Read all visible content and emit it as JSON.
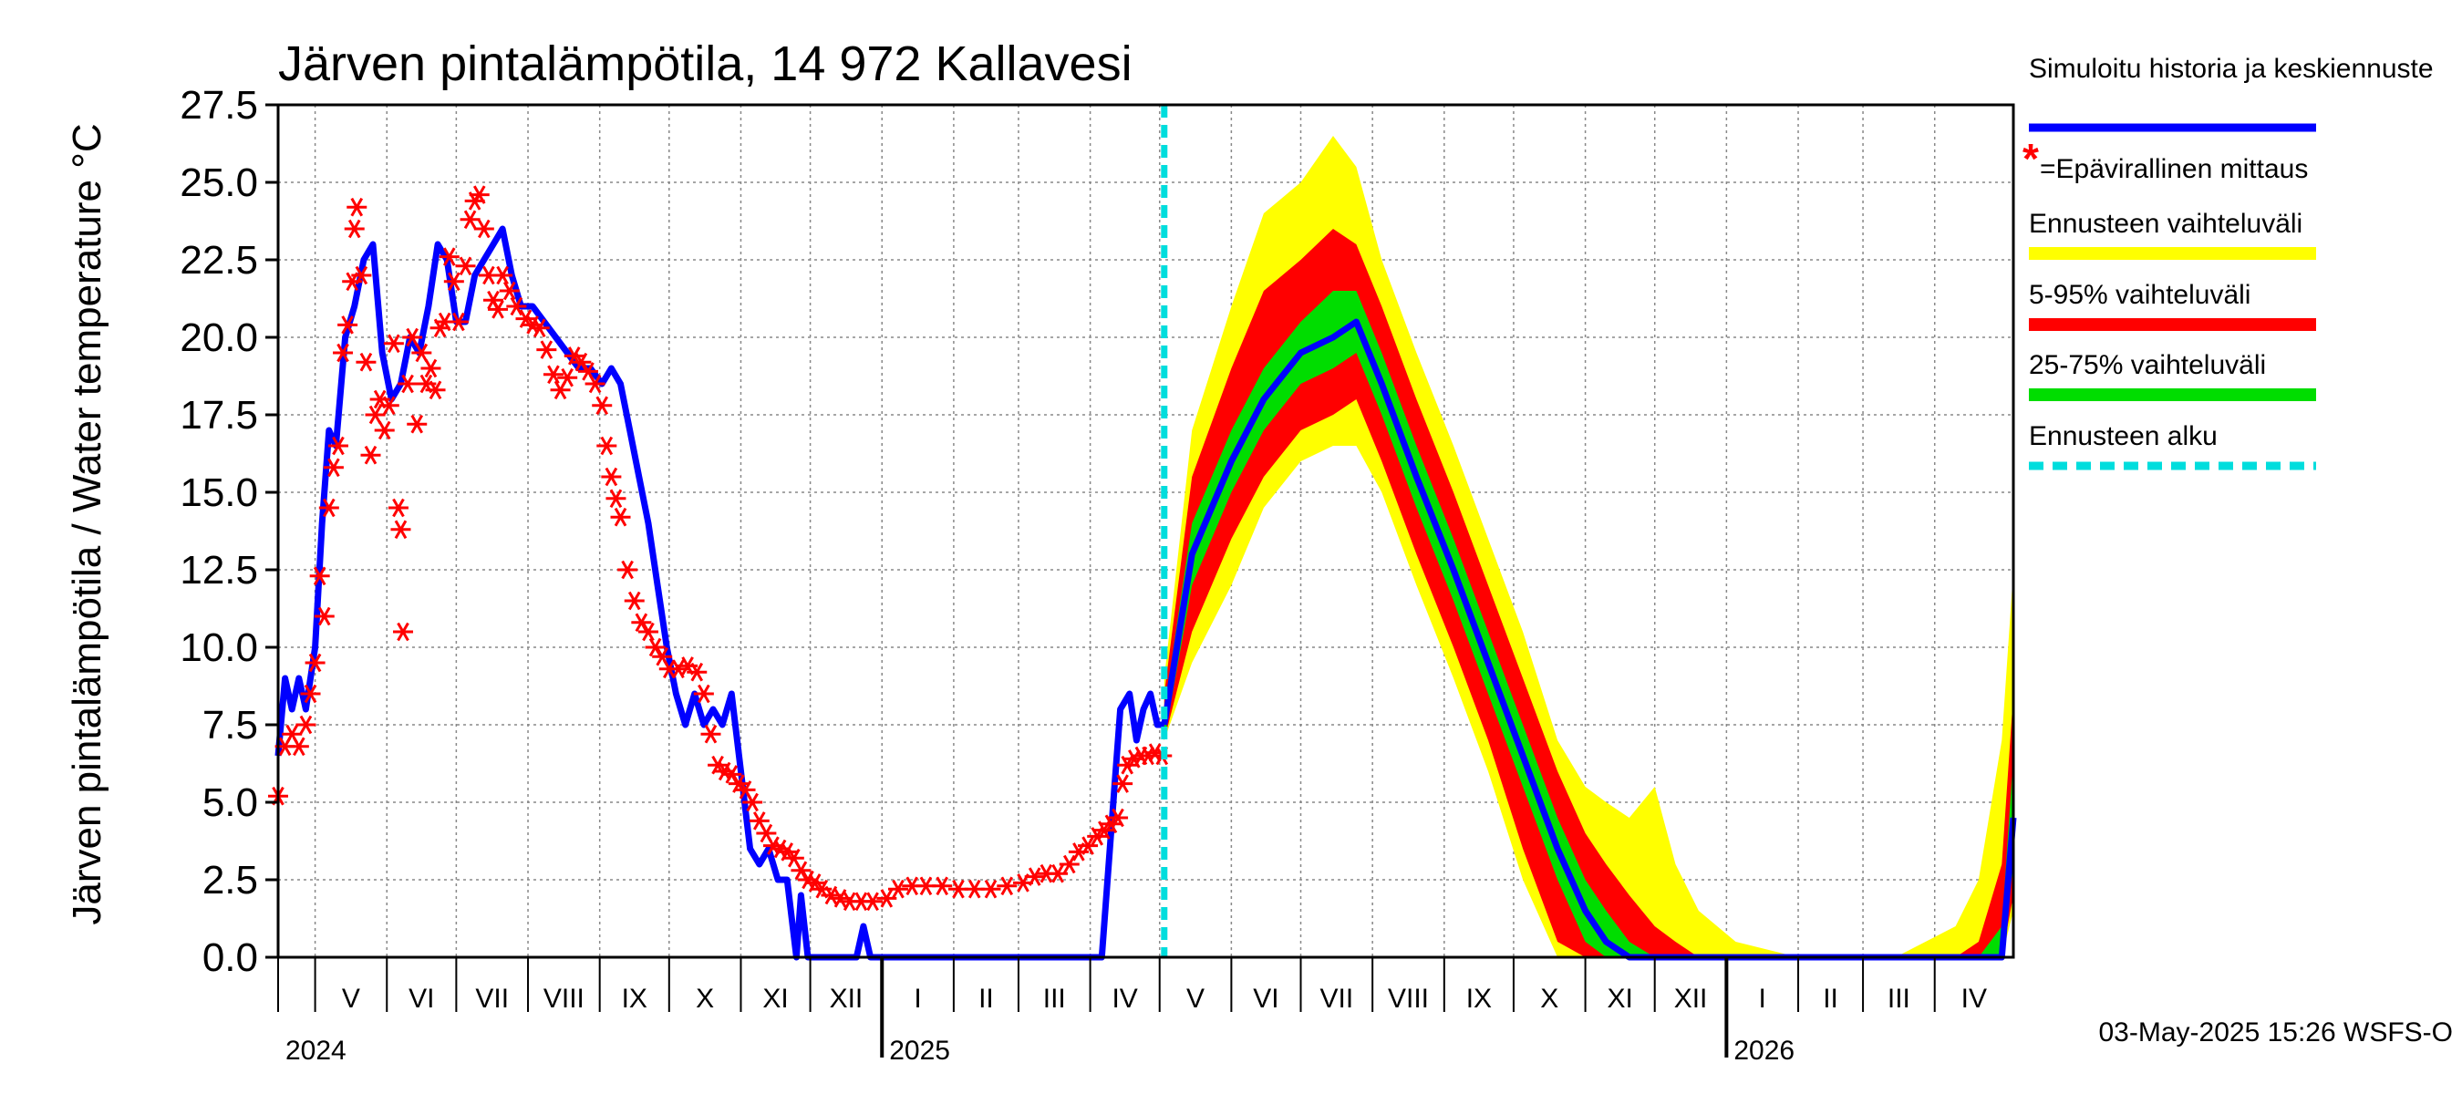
{
  "chart_data": {
    "type": "area",
    "title": "Järven pintalämpötila, 14 972 Kallavesi",
    "ylabel": "Järven pintalämpötila / Water temperature °C",
    "ylim": [
      0,
      27.5
    ],
    "yticks": [
      "0.0",
      "2.5",
      "5.0",
      "7.5",
      "10.0",
      "12.5",
      "15.0",
      "17.5",
      "20.0",
      "22.5",
      "25.0",
      "27.5"
    ],
    "x_start": "2024-04-15",
    "x_end": "2026-05-05",
    "forecast_start": "2025-05-03",
    "months": [
      {
        "label": "V",
        "start": "2024-05-01"
      },
      {
        "label": "VI",
        "start": "2024-06-01"
      },
      {
        "label": "VII",
        "start": "2024-07-01"
      },
      {
        "label": "VIII",
        "start": "2024-08-01"
      },
      {
        "label": "IX",
        "start": "2024-09-01"
      },
      {
        "label": "X",
        "start": "2024-10-01"
      },
      {
        "label": "XI",
        "start": "2024-11-01"
      },
      {
        "label": "XII",
        "start": "2024-12-01"
      },
      {
        "label": "I",
        "start": "2025-01-01"
      },
      {
        "label": "II",
        "start": "2025-02-01"
      },
      {
        "label": "III",
        "start": "2025-03-01"
      },
      {
        "label": "IV",
        "start": "2025-04-01"
      },
      {
        "label": "V",
        "start": "2025-05-01"
      },
      {
        "label": "VI",
        "start": "2025-06-01"
      },
      {
        "label": "VII",
        "start": "2025-07-01"
      },
      {
        "label": "VIII",
        "start": "2025-08-01"
      },
      {
        "label": "IX",
        "start": "2025-09-01"
      },
      {
        "label": "X",
        "start": "2025-10-01"
      },
      {
        "label": "XI",
        "start": "2025-11-01"
      },
      {
        "label": "XII",
        "start": "2025-12-01"
      },
      {
        "label": "I",
        "start": "2026-01-01"
      },
      {
        "label": "II",
        "start": "2026-02-01"
      },
      {
        "label": "III",
        "start": "2026-03-01"
      },
      {
        "label": "IV",
        "start": "2026-04-01"
      }
    ],
    "years": [
      {
        "label": "2024",
        "date": "2024-04-15"
      },
      {
        "label": "2025",
        "date": "2025-01-01"
      },
      {
        "label": "2026",
        "date": "2026-01-01"
      }
    ],
    "history": {
      "name": "Simuloitu historia ja keskiennuste",
      "color": "#0000ff",
      "points": [
        [
          "2024-04-15",
          6.5
        ],
        [
          "2024-04-18",
          9.0
        ],
        [
          "2024-04-21",
          8.0
        ],
        [
          "2024-04-24",
          9.0
        ],
        [
          "2024-04-27",
          8.0
        ],
        [
          "2024-05-01",
          10.0
        ],
        [
          "2024-05-04",
          14.0
        ],
        [
          "2024-05-07",
          17.0
        ],
        [
          "2024-05-10",
          16.5
        ],
        [
          "2024-05-14",
          20.0
        ],
        [
          "2024-05-18",
          21.0
        ],
        [
          "2024-05-22",
          22.5
        ],
        [
          "2024-05-26",
          23.0
        ],
        [
          "2024-05-30",
          19.5
        ],
        [
          "2024-06-03",
          18.0
        ],
        [
          "2024-06-07",
          18.5
        ],
        [
          "2024-06-11",
          20.0
        ],
        [
          "2024-06-15",
          19.5
        ],
        [
          "2024-06-19",
          21.0
        ],
        [
          "2024-06-23",
          23.0
        ],
        [
          "2024-06-27",
          22.5
        ],
        [
          "2024-07-01",
          20.5
        ],
        [
          "2024-07-05",
          20.5
        ],
        [
          "2024-07-09",
          22.0
        ],
        [
          "2024-07-13",
          22.5
        ],
        [
          "2024-07-17",
          23.0
        ],
        [
          "2024-07-21",
          23.5
        ],
        [
          "2024-07-25",
          22.0
        ],
        [
          "2024-07-29",
          21.0
        ],
        [
          "2024-08-03",
          21.0
        ],
        [
          "2024-08-08",
          20.5
        ],
        [
          "2024-08-13",
          20.0
        ],
        [
          "2024-08-18",
          19.5
        ],
        [
          "2024-08-23",
          19.0
        ],
        [
          "2024-08-28",
          19.0
        ],
        [
          "2024-09-02",
          18.5
        ],
        [
          "2024-09-06",
          19.0
        ],
        [
          "2024-09-10",
          18.5
        ],
        [
          "2024-09-14",
          17.0
        ],
        [
          "2024-09-18",
          15.5
        ],
        [
          "2024-09-22",
          14.0
        ],
        [
          "2024-09-26",
          12.0
        ],
        [
          "2024-09-30",
          10.0
        ],
        [
          "2024-10-04",
          8.5
        ],
        [
          "2024-10-08",
          7.5
        ],
        [
          "2024-10-12",
          8.5
        ],
        [
          "2024-10-16",
          7.5
        ],
        [
          "2024-10-20",
          8.0
        ],
        [
          "2024-10-24",
          7.5
        ],
        [
          "2024-10-28",
          8.5
        ],
        [
          "2024-11-01",
          6.0
        ],
        [
          "2024-11-05",
          3.5
        ],
        [
          "2024-11-09",
          3.0
        ],
        [
          "2024-11-13",
          3.5
        ],
        [
          "2024-11-17",
          2.5
        ],
        [
          "2024-11-21",
          2.5
        ],
        [
          "2024-11-25",
          0.0
        ],
        [
          "2024-11-27",
          2.0
        ],
        [
          "2024-11-30",
          0.0
        ],
        [
          "2024-12-05",
          0.0
        ],
        [
          "2024-12-15",
          0.0
        ],
        [
          "2024-12-21",
          0.0
        ],
        [
          "2024-12-24",
          1.0
        ],
        [
          "2024-12-27",
          0.0
        ],
        [
          "2025-01-10",
          0.0
        ],
        [
          "2025-02-01",
          0.0
        ],
        [
          "2025-03-01",
          0.0
        ],
        [
          "2025-04-01",
          0.0
        ],
        [
          "2025-04-06",
          0.0
        ],
        [
          "2025-04-10",
          4.0
        ],
        [
          "2025-04-14",
          8.0
        ],
        [
          "2025-04-18",
          8.5
        ],
        [
          "2025-04-21",
          7.0
        ],
        [
          "2025-04-24",
          8.0
        ],
        [
          "2025-04-27",
          8.5
        ],
        [
          "2025-04-30",
          7.5
        ],
        [
          "2025-05-03",
          7.5
        ]
      ]
    },
    "forecast_bands": {
      "dates": [
        "2025-05-03",
        "2025-05-15",
        "2025-06-01",
        "2025-06-15",
        "2025-07-01",
        "2025-07-15",
        "2025-07-25",
        "2025-08-05",
        "2025-08-20",
        "2025-09-05",
        "2025-09-20",
        "2025-10-05",
        "2025-10-20",
        "2025-11-01",
        "2025-11-10",
        "2025-11-20",
        "2025-12-01",
        "2025-12-10",
        "2025-12-20",
        "2026-01-05",
        "2026-02-01",
        "2026-03-15",
        "2026-04-10",
        "2026-04-20",
        "2026-04-30",
        "2026-05-05"
      ],
      "median": [
        7.5,
        13.0,
        16.0,
        18.0,
        19.5,
        20.0,
        20.5,
        18.5,
        15.5,
        12.5,
        9.5,
        6.5,
        3.5,
        1.5,
        0.5,
        0.0,
        0.0,
        0.0,
        0.0,
        0.0,
        0.0,
        0.0,
        0.0,
        0.0,
        0.0,
        4.5
      ],
      "p25": [
        7.0,
        12.0,
        15.0,
        17.0,
        18.5,
        19.0,
        19.5,
        17.5,
        14.5,
        11.5,
        8.5,
        5.5,
        2.5,
        0.5,
        0.0,
        0.0,
        0.0,
        0.0,
        0.0,
        0.0,
        0.0,
        0.0,
        0.0,
        0.0,
        0.0,
        3.0
      ],
      "p75": [
        8.0,
        14.0,
        17.0,
        19.0,
        20.5,
        21.5,
        21.5,
        19.5,
        16.5,
        13.5,
        10.5,
        7.5,
        4.5,
        2.5,
        1.5,
        0.5,
        0.0,
        0.0,
        0.0,
        0.0,
        0.0,
        0.0,
        0.0,
        0.0,
        1.0,
        6.5
      ],
      "p5": [
        7.0,
        10.5,
        13.5,
        15.5,
        17.0,
        17.5,
        18.0,
        16.0,
        13.0,
        10.0,
        7.0,
        3.5,
        0.5,
        0.0,
        0.0,
        0.0,
        0.0,
        0.0,
        0.0,
        0.0,
        0.0,
        0.0,
        0.0,
        0.0,
        0.0,
        2.0
      ],
      "p95": [
        8.5,
        15.5,
        19.0,
        21.5,
        22.5,
        23.5,
        23.0,
        21.0,
        18.0,
        15.0,
        12.0,
        9.0,
        6.0,
        4.0,
        3.0,
        2.0,
        1.0,
        0.5,
        0.0,
        0.0,
        0.0,
        0.0,
        0.0,
        0.5,
        3.0,
        8.5
      ],
      "min": [
        7.0,
        9.5,
        12.0,
        14.5,
        16.0,
        16.5,
        16.5,
        15.0,
        12.0,
        9.0,
        6.0,
        2.5,
        0.0,
        0.0,
        0.0,
        0.0,
        0.0,
        0.0,
        0.0,
        0.0,
        0.0,
        0.0,
        0.0,
        0.0,
        0.0,
        1.5
      ],
      "max": [
        9.0,
        17.0,
        21.0,
        24.0,
        25.0,
        26.5,
        25.5,
        22.5,
        19.5,
        16.5,
        13.5,
        10.5,
        7.0,
        5.5,
        5.0,
        4.5,
        5.5,
        3.0,
        1.5,
        0.5,
        0.0,
        0.0,
        1.0,
        2.5,
        7.0,
        12.5
      ]
    },
    "observations": {
      "name": "=Epävirallinen mittaus",
      "color": "#ff0000",
      "points": [
        [
          "2024-04-15",
          5.2
        ],
        [
          "2024-04-18",
          6.8
        ],
        [
          "2024-04-21",
          7.2
        ],
        [
          "2024-04-24",
          6.8
        ],
        [
          "2024-04-27",
          7.5
        ],
        [
          "2024-04-29",
          8.5
        ],
        [
          "2024-05-01",
          9.5
        ],
        [
          "2024-05-03",
          12.3
        ],
        [
          "2024-05-05",
          11.0
        ],
        [
          "2024-05-07",
          14.5
        ],
        [
          "2024-05-09",
          15.8
        ],
        [
          "2024-05-11",
          16.5
        ],
        [
          "2024-05-13",
          19.5
        ],
        [
          "2024-05-15",
          20.4
        ],
        [
          "2024-05-17",
          21.8
        ],
        [
          "2024-05-18",
          23.5
        ],
        [
          "2024-05-19",
          24.2
        ],
        [
          "2024-05-21",
          22.0
        ],
        [
          "2024-05-23",
          19.2
        ],
        [
          "2024-05-25",
          16.2
        ],
        [
          "2024-05-27",
          17.5
        ],
        [
          "2024-05-29",
          18.0
        ],
        [
          "2024-05-31",
          17.0
        ],
        [
          "2024-06-02",
          17.8
        ],
        [
          "2024-06-04",
          19.8
        ],
        [
          "2024-06-06",
          14.5
        ],
        [
          "2024-06-07",
          13.8
        ],
        [
          "2024-06-08",
          10.5
        ],
        [
          "2024-06-10",
          18.5
        ],
        [
          "2024-06-12",
          20.0
        ],
        [
          "2024-06-14",
          17.2
        ],
        [
          "2024-06-16",
          19.5
        ],
        [
          "2024-06-18",
          18.5
        ],
        [
          "2024-06-20",
          19.0
        ],
        [
          "2024-06-22",
          18.3
        ],
        [
          "2024-06-24",
          20.3
        ],
        [
          "2024-06-26",
          20.5
        ],
        [
          "2024-06-28",
          22.6
        ],
        [
          "2024-06-30",
          21.8
        ],
        [
          "2024-07-02",
          20.5
        ],
        [
          "2024-07-05",
          22.3
        ],
        [
          "2024-07-07",
          23.8
        ],
        [
          "2024-07-09",
          24.4
        ],
        [
          "2024-07-11",
          24.6
        ],
        [
          "2024-07-13",
          23.5
        ],
        [
          "2024-07-15",
          22.0
        ],
        [
          "2024-07-17",
          21.2
        ],
        [
          "2024-07-19",
          20.9
        ],
        [
          "2024-07-21",
          22.0
        ],
        [
          "2024-07-24",
          21.5
        ],
        [
          "2024-07-27",
          21.0
        ],
        [
          "2024-07-31",
          20.6
        ],
        [
          "2024-08-03",
          20.4
        ],
        [
          "2024-08-06",
          20.3
        ],
        [
          "2024-08-09",
          19.6
        ],
        [
          "2024-08-12",
          18.8
        ],
        [
          "2024-08-15",
          18.3
        ],
        [
          "2024-08-18",
          18.7
        ],
        [
          "2024-08-21",
          19.4
        ],
        [
          "2024-08-24",
          19.2
        ],
        [
          "2024-08-27",
          18.9
        ],
        [
          "2024-08-30",
          18.5
        ],
        [
          "2024-09-02",
          17.8
        ],
        [
          "2024-09-04",
          16.5
        ],
        [
          "2024-09-06",
          15.5
        ],
        [
          "2024-09-08",
          14.8
        ],
        [
          "2024-09-10",
          14.2
        ],
        [
          "2024-09-13",
          12.5
        ],
        [
          "2024-09-16",
          11.5
        ],
        [
          "2024-09-19",
          10.8
        ],
        [
          "2024-09-22",
          10.5
        ],
        [
          "2024-09-25",
          10.0
        ],
        [
          "2024-09-28",
          9.7
        ],
        [
          "2024-10-01",
          9.3
        ],
        [
          "2024-10-05",
          9.3
        ],
        [
          "2024-10-09",
          9.4
        ],
        [
          "2024-10-13",
          9.2
        ],
        [
          "2024-10-16",
          8.5
        ],
        [
          "2024-10-19",
          7.2
        ],
        [
          "2024-10-22",
          6.2
        ],
        [
          "2024-10-25",
          6.0
        ],
        [
          "2024-10-28",
          5.9
        ],
        [
          "2024-10-31",
          5.6
        ],
        [
          "2024-11-03",
          5.4
        ],
        [
          "2024-11-06",
          5.0
        ],
        [
          "2024-11-09",
          4.4
        ],
        [
          "2024-11-12",
          4.0
        ],
        [
          "2024-11-15",
          3.6
        ],
        [
          "2024-11-18",
          3.5
        ],
        [
          "2024-11-21",
          3.4
        ],
        [
          "2024-11-24",
          3.2
        ],
        [
          "2024-11-27",
          2.8
        ],
        [
          "2024-11-30",
          2.5
        ],
        [
          "2024-12-03",
          2.4
        ],
        [
          "2024-12-06",
          2.2
        ],
        [
          "2024-12-10",
          2.0
        ],
        [
          "2024-12-14",
          1.9
        ],
        [
          "2024-12-18",
          1.8
        ],
        [
          "2024-12-23",
          1.8
        ],
        [
          "2024-12-28",
          1.8
        ],
        [
          "2025-01-03",
          1.9
        ],
        [
          "2025-01-08",
          2.2
        ],
        [
          "2025-01-14",
          2.3
        ],
        [
          "2025-01-20",
          2.3
        ],
        [
          "2025-01-27",
          2.3
        ],
        [
          "2025-02-03",
          2.2
        ],
        [
          "2025-02-10",
          2.2
        ],
        [
          "2025-02-17",
          2.2
        ],
        [
          "2025-02-24",
          2.3
        ],
        [
          "2025-03-03",
          2.4
        ],
        [
          "2025-03-08",
          2.6
        ],
        [
          "2025-03-13",
          2.7
        ],
        [
          "2025-03-18",
          2.7
        ],
        [
          "2025-03-23",
          3.0
        ],
        [
          "2025-03-27",
          3.4
        ],
        [
          "2025-03-31",
          3.6
        ],
        [
          "2025-04-04",
          3.9
        ],
        [
          "2025-04-07",
          4.1
        ],
        [
          "2025-04-10",
          4.3
        ],
        [
          "2025-04-13",
          4.5
        ],
        [
          "2025-04-15",
          5.6
        ],
        [
          "2025-04-17",
          6.2
        ],
        [
          "2025-04-20",
          6.4
        ],
        [
          "2025-04-23",
          6.5
        ],
        [
          "2025-04-26",
          6.5
        ],
        [
          "2025-04-29",
          6.6
        ],
        [
          "2025-05-02",
          6.5
        ]
      ]
    },
    "legend": {
      "history_label": "Simuloitu historia ja keskiennuste",
      "obs_label": "=Epävirallinen mittaus",
      "range_label": "Ennusteen vaihteluväli",
      "p5_95_label": "5-95% vaihteluväli",
      "p25_75_label": "25-75% vaihteluväli",
      "start_label": "Ennusteen alku",
      "colors": {
        "history": "#0000ff",
        "obs": "#ff0000",
        "range": "#ffff00",
        "p5_95": "#ff0000",
        "p25_75": "#00dd00",
        "start": "#00dddd"
      }
    },
    "grid": true,
    "legend_position": "right"
  },
  "footer": "03-May-2025 15:26 WSFS-O"
}
